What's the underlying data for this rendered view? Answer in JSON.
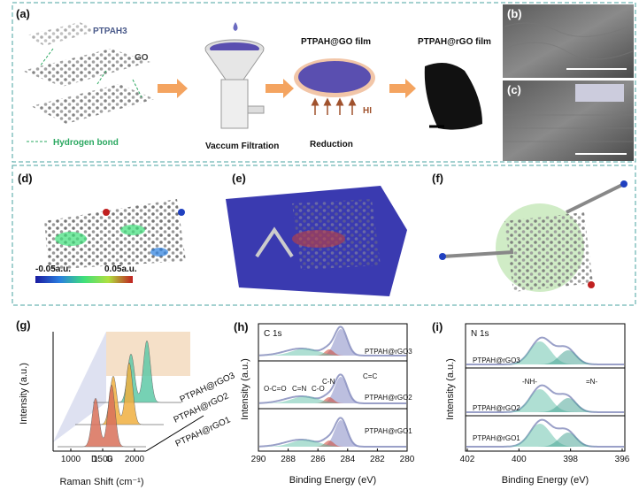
{
  "panels": {
    "a": {
      "label": "(a)",
      "molecule": "PTPAH3",
      "sheet": "GO",
      "bond": "Hydrogen bond",
      "step1": "Vaccum Filtration",
      "film1": "PTPAH@GO film",
      "step2": "Reduction",
      "reagent": "HI",
      "film2": "PTPAH@rGO film"
    },
    "b": {
      "label": "(b)"
    },
    "c": {
      "label": "(c)"
    },
    "d": {
      "label": "(d)",
      "colorbar_min": "-0.05a.u.",
      "colorbar_max": "0.05a.u."
    },
    "e": {
      "label": "(e)"
    },
    "f": {
      "label": "(f)"
    },
    "g": {
      "label": "(g)",
      "y_label": "Intensity (a.u.)",
      "x_label": "Raman Shift (cm⁻¹)",
      "x_ticks": [
        "1000",
        "1500",
        "2000"
      ],
      "peaks": [
        "D",
        "G"
      ],
      "series": [
        "PTPAH@rGO3",
        "PTPAH@rGO2",
        "PTPAH@rGO1"
      ]
    },
    "h": {
      "label": "(h)",
      "title": "C 1s",
      "y_label": "Intensity (a.u.)",
      "x_label": "Binding Energy (eV)",
      "x_ticks": [
        "290",
        "288",
        "286",
        "284",
        "282",
        "280"
      ],
      "peaks": [
        "O-C=O",
        "C=N",
        "C-O",
        "C-N",
        "C=C"
      ],
      "series": [
        "PTPAH@rGO3",
        "PTPAH@rGO2",
        "PTPAH@rGO1"
      ]
    },
    "i": {
      "label": "(i)",
      "title": "N 1s",
      "y_label": "Intensity (a.u.)",
      "x_label": "Binding Energy (eV)",
      "x_ticks": [
        "402",
        "400",
        "398",
        "396"
      ],
      "peaks": [
        "-NH-",
        "=N-"
      ],
      "series": [
        "PTPAH@rGO3",
        "PTPAH@rGO2",
        "PTPAH@rGO1"
      ]
    }
  }
}
